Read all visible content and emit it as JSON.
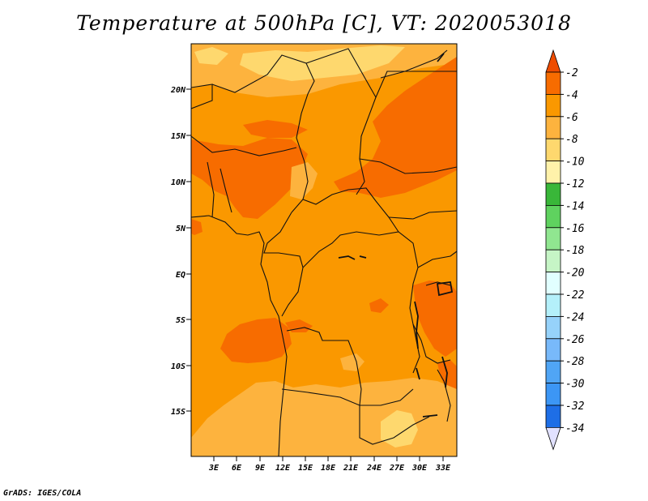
{
  "title": "Temperature at 500hPa [C], VT: 2020053018",
  "credit": "GrADS: IGES/COLA",
  "map": {
    "lat_ticks": [
      "20N",
      "15N",
      "10N",
      "5N",
      "EQ",
      "5S",
      "10S",
      "15S"
    ],
    "lon_ticks": [
      "3E",
      "6E",
      "9E",
      "12E",
      "15E",
      "18E",
      "21E",
      "24E",
      "27E",
      "30E",
      "33E"
    ]
  },
  "colorbar": {
    "labels": [
      "-2",
      "-4",
      "-6",
      "-8",
      "-10",
      "-12",
      "-14",
      "-16",
      "-18",
      "-20",
      "-22",
      "-24",
      "-26",
      "-28",
      "-30",
      "-32",
      "-34"
    ],
    "colors": [
      "#ee4c00",
      "#f76c00",
      "#fa9800",
      "#fdb33e",
      "#fed86e",
      "#fff2aa",
      "#39b739",
      "#5fd25f",
      "#90e690",
      "#c6f5c6",
      "#e1ffff",
      "#b4f0fa",
      "#96d2fa",
      "#78b9fa",
      "#50a5f5",
      "#3c96f5",
      "#1e6ee6",
      "#1450d2",
      "#0a0a78",
      "#e1e1ff"
    ]
  }
}
